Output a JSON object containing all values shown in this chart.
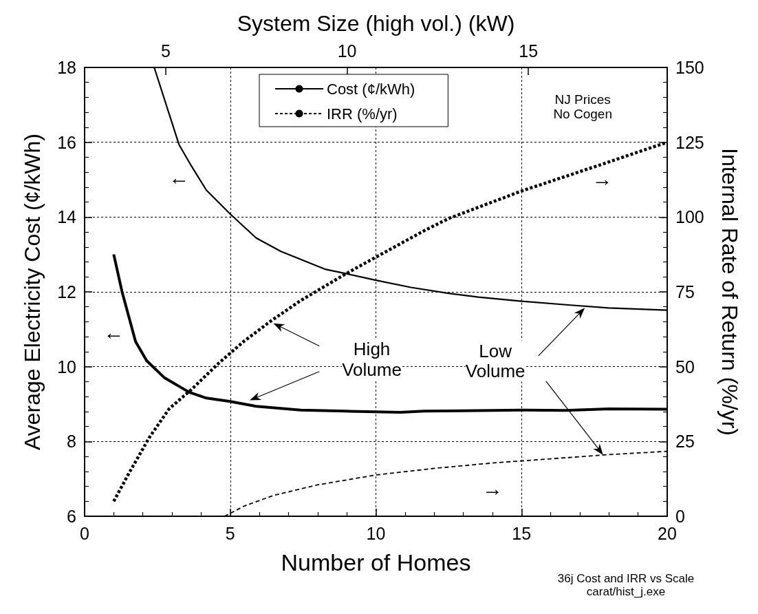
{
  "chart_data": {
    "type": "line",
    "xlabel": "Number of Homes",
    "ylabel": "Average Electricity Cost (¢/kWh)",
    "y2label": "Internal Rate of Return (%/yr)",
    "x2label": "System Size (high vol.) (kW)",
    "xlim": [
      0,
      20
    ],
    "xticks": [
      0,
      5,
      10,
      15,
      20
    ],
    "ylim": [
      6,
      18
    ],
    "yticks": [
      6,
      8,
      10,
      12,
      14,
      16,
      18
    ],
    "y2lim": [
      0,
      150
    ],
    "y2ticks": [
      0,
      25,
      50,
      75,
      100,
      125,
      150
    ],
    "x2lim": [
      2.76,
      18.83
    ],
    "x2ticks": [
      5,
      10,
      15
    ],
    "grid": true,
    "legend": "top",
    "marker": "none",
    "series": [
      {
        "name": "Cost (¢/kWh)",
        "color": "#000000",
        "line_style": "solid",
        "x": [
          1,
          1.28,
          1.75,
          2.13,
          2.73,
          3.58,
          4.18,
          5,
          5.89,
          7.42,
          8.96,
          10.84,
          11.65,
          13,
          15,
          16.5,
          18,
          20
        ],
        "values": [
          13.0,
          12.02,
          10.67,
          10.16,
          9.71,
          9.32,
          9.16,
          9.07,
          8.94,
          8.84,
          8.81,
          8.78,
          8.81,
          8.82,
          8.84,
          8.83,
          8.87,
          8.86
        ]
      },
      {
        "color": "#000000",
        "line_style": "solid",
        "x": [
          2.39,
          3.24,
          3.67,
          4.18,
          5,
          5.89,
          6.74,
          8.28,
          8.96,
          10,
          11.2,
          12.49,
          13.52,
          15,
          16.6,
          17.99,
          20
        ],
        "values": [
          18,
          15.94,
          15.36,
          14.72,
          14.08,
          13.44,
          13.08,
          12.6,
          12.49,
          12.31,
          12.12,
          11.96,
          11.86,
          11.75,
          11.65,
          11.57,
          11.51
        ]
      },
      {
        "name": "IRR (%/yr)",
        "color": "#000000",
        "line_style": "dotted",
        "axis": "y2",
        "x": [
          1,
          1.5,
          2.22,
          2.9,
          3.67,
          4.61,
          5.46,
          6.4,
          7.42,
          8.96,
          10,
          11.65,
          12.49,
          15,
          17.47,
          20
        ],
        "values": [
          5,
          14,
          26.3,
          35.9,
          42.4,
          51.2,
          58.4,
          65.3,
          72.1,
          81,
          86.6,
          95.4,
          99.5,
          108.7,
          116.7,
          125
        ]
      },
      {
        "color": "#000000",
        "line_style": "dashed",
        "axis": "y2",
        "x": [
          4.8,
          5.5,
          6.5,
          8,
          10,
          12,
          14,
          16,
          18,
          20
        ],
        "values": [
          0,
          3.5,
          7,
          10.5,
          13.8,
          16,
          17.8,
          19.2,
          20.6,
          21.7
        ]
      }
    ],
    "annotations": [
      "NJ Prices\nNo Cogen",
      "High\nVolume",
      "Low\nVolume",
      "←",
      "←",
      "→",
      "→",
      "36j Cost and IRR vs Scale\ncarat/hist_j.exe"
    ]
  }
}
